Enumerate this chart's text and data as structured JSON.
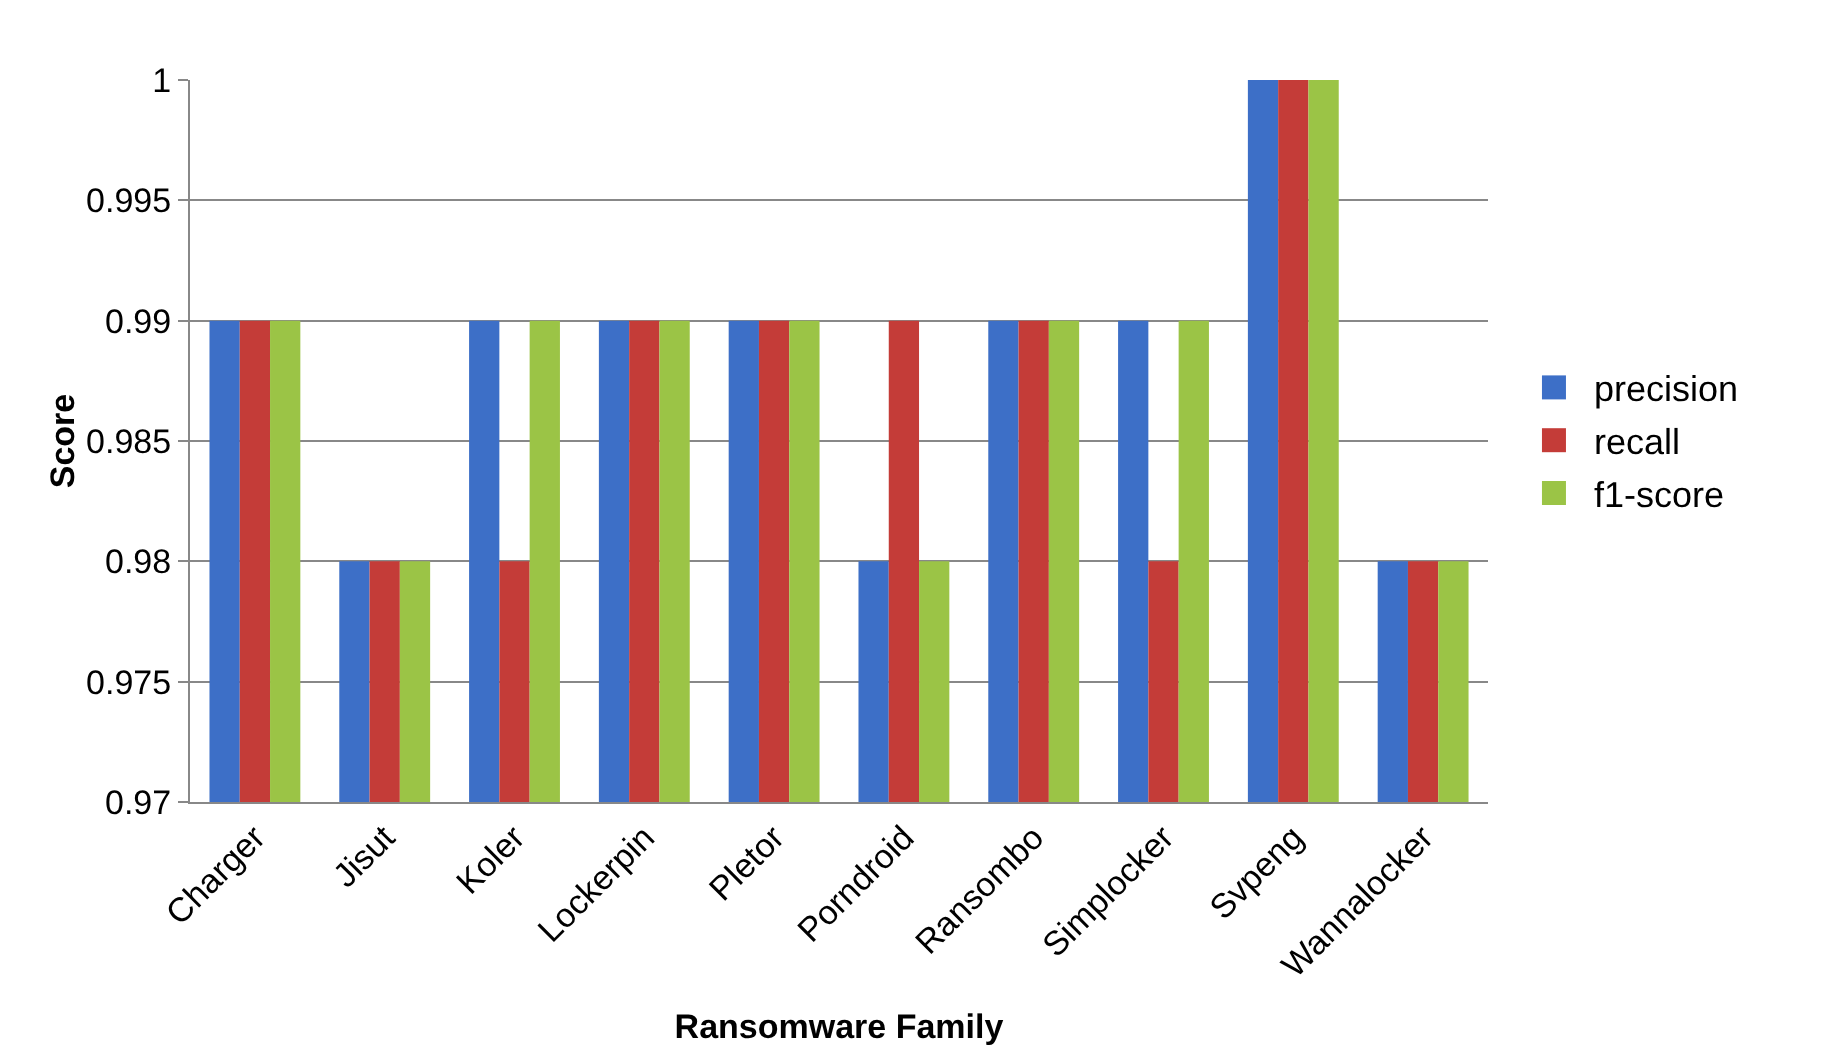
{
  "chart_data": {
    "type": "bar",
    "xlabel": "Ransomware Family",
    "ylabel": "Score",
    "categories": [
      "Charger",
      "Jisut",
      "Koler",
      "Lockerpin",
      "Pletor",
      "Porndroid",
      "Ransombo",
      "Simplocker",
      "Svpeng",
      "Wannalocker"
    ],
    "series": [
      {
        "name": "precision",
        "color": "#3d6fc7",
        "values": [
          0.99,
          0.98,
          0.99,
          0.99,
          0.99,
          0.98,
          0.99,
          0.99,
          1,
          0.98
        ]
      },
      {
        "name": "recall",
        "color": "#c43c38",
        "values": [
          0.99,
          0.98,
          0.98,
          0.99,
          0.99,
          0.99,
          0.99,
          0.98,
          1,
          0.98
        ]
      },
      {
        "name": "f1-score",
        "color": "#9bc446",
        "values": [
          0.99,
          0.98,
          0.99,
          0.99,
          0.99,
          0.98,
          0.99,
          0.99,
          1,
          0.98
        ]
      }
    ],
    "ylim": [
      0.97,
      1
    ],
    "yticks": [
      0.97,
      0.975,
      0.98,
      0.985,
      0.99,
      0.995,
      1
    ],
    "grid": "y",
    "legend": "right"
  }
}
